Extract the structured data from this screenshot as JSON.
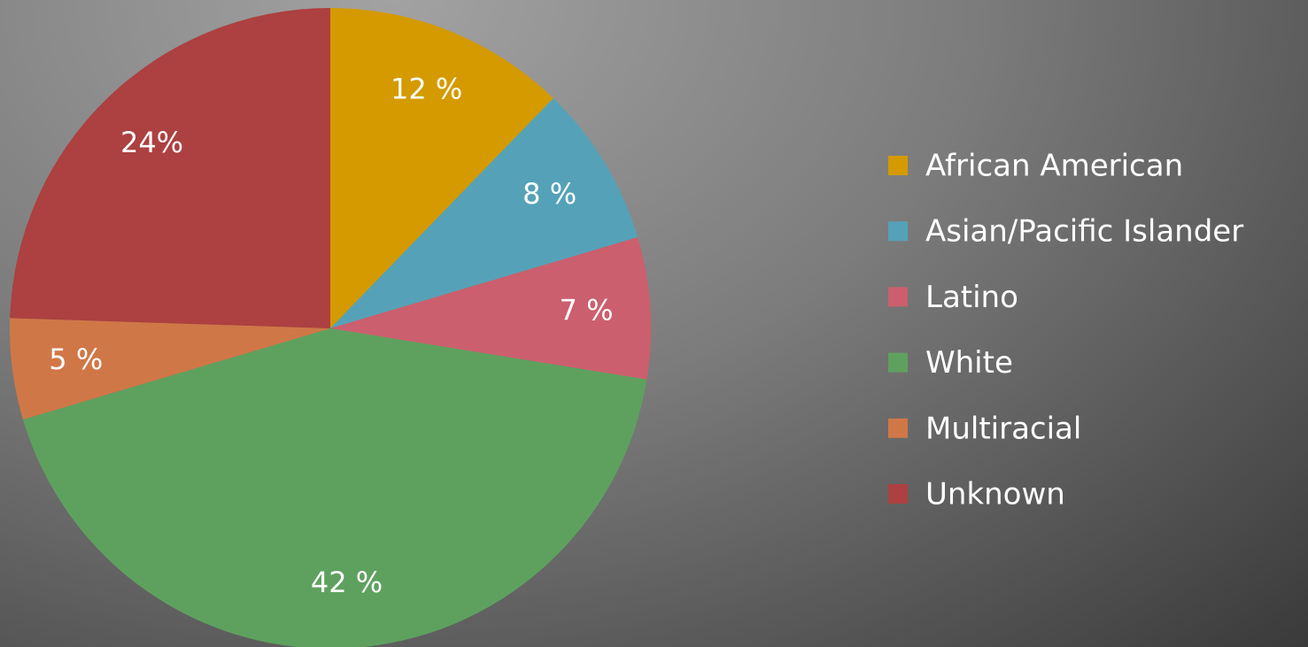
{
  "chart_data": {
    "type": "pie",
    "categories": [
      "African American",
      "Asian/Pacific Islander",
      "Latino",
      "White",
      "Multiracial",
      "Unknown"
    ],
    "values": [
      12,
      8,
      7,
      42,
      5,
      24
    ],
    "value_labels": [
      "12 %",
      "8 %",
      "7 %",
      "42 %",
      "5 %",
      "24%"
    ],
    "colors": [
      "#d49a00",
      "#55a2b8",
      "#cc5f6d",
      "#5ea15f",
      "#d07747",
      "#ad4040"
    ],
    "legend": "right"
  }
}
